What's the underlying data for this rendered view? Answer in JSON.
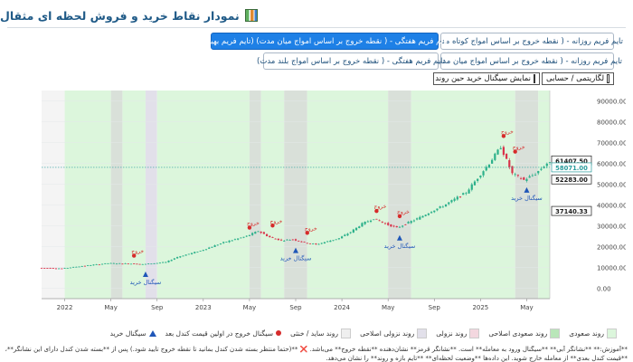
{
  "header": {
    "title": "نمودار نقاط خرید و فروش لحظه ای مثقال"
  },
  "buttons": {
    "row1": [
      "تایم فریم روزانه - ( نقطه خروج بر اساس امواج کوتاه مدت)",
      "تایم فریم هفتگی - ( نقطه خروج بر اساس امواج میان مدت) (تایم فریم بهینه)"
    ],
    "row2": [
      "تایم فریم روزانه - ( نقطه خروج بر اساس امواج میان مدت)",
      "تایم فریم هفتگی - ( نقطه خروج بر اساس امواج بلند مدت)"
    ],
    "active_index": "row1.1"
  },
  "checkboxes": {
    "log": "لگاریتمی / حسابی",
    "realtime": "نمایش سیگنال خرید حین روند"
  },
  "chart_data": {
    "type": "candlestick",
    "x_tick_labels": [
      "2022",
      "May",
      "Sep",
      "2023",
      "May",
      "Sep",
      "2024",
      "May",
      "Sep",
      "2025",
      "May"
    ],
    "y_ticks": [
      0,
      10000,
      20000,
      30000,
      40000,
      50000,
      60000,
      70000,
      80000,
      90000
    ],
    "y_tick_labels": [
      "0.00",
      "10000.00",
      "20000.00",
      "30000.00",
      "40000.00",
      "50000.00",
      "60000.00",
      "70000.00",
      "80000.00",
      "90000.00"
    ],
    "ylim": [
      -5000,
      95000
    ],
    "x_range": [
      "2021-11",
      "2025-07"
    ],
    "price_labels": [
      {
        "value": 61407.5,
        "text": "61407.50",
        "color": "#1c1c1c"
      },
      {
        "value": 58071,
        "text": "58071.00",
        "color": "#2a9d9d"
      },
      {
        "value": 52283,
        "text": "52283.00",
        "color": "#1c1c1c"
      },
      {
        "value": 37140.33,
        "text": "37140.33",
        "color": "#1c1c1c"
      }
    ],
    "price_path": [
      [
        "2021-11",
        9800
      ],
      [
        "2022-01",
        9500
      ],
      [
        "2022-03",
        10800
      ],
      [
        "2022-05",
        12000
      ],
      [
        "2022-07",
        11800
      ],
      [
        "2022-08",
        11500
      ],
      [
        "2022-10",
        12500
      ],
      [
        "2022-11",
        15000
      ],
      [
        "2023-01",
        18000
      ],
      [
        "2023-03",
        22000
      ],
      [
        "2023-05",
        25000
      ],
      [
        "2023-06",
        27500
      ],
      [
        "2023-07",
        24500
      ],
      [
        "2023-08",
        23000
      ],
      [
        "2023-09",
        23500
      ],
      [
        "2023-10",
        22000
      ],
      [
        "2023-11",
        21000
      ],
      [
        "2023-12",
        22500
      ],
      [
        "2024-01",
        24000
      ],
      [
        "2024-02",
        27000
      ],
      [
        "2024-03",
        31000
      ],
      [
        "2024-04",
        33500
      ],
      [
        "2024-05",
        31000
      ],
      [
        "2024-06",
        29000
      ],
      [
        "2024-07",
        31500
      ],
      [
        "2024-08",
        34000
      ],
      [
        "2024-09",
        37000
      ],
      [
        "2024-10",
        39500
      ],
      [
        "2024-12",
        46000
      ],
      [
        "2025-02",
        60000
      ],
      [
        "2025-03",
        68000
      ],
      [
        "2025-04",
        55000
      ],
      [
        "2025-05",
        52000
      ],
      [
        "2025-06",
        55000
      ],
      [
        "2025-07",
        60000
      ]
    ],
    "regimes": [
      {
        "start": "2021-11",
        "end": "2022-01",
        "kind": "neutral"
      },
      {
        "start": "2022-01",
        "end": "2022-05",
        "kind": "up"
      },
      {
        "start": "2022-05",
        "end": "2022-06",
        "kind": "correction"
      },
      {
        "start": "2022-06",
        "end": "2022-08",
        "kind": "up"
      },
      {
        "start": "2022-08",
        "end": "2022-09",
        "kind": "down"
      },
      {
        "start": "2022-09",
        "end": "2023-05",
        "kind": "up"
      },
      {
        "start": "2023-05",
        "end": "2023-06",
        "kind": "correction"
      },
      {
        "start": "2023-06",
        "end": "2023-08",
        "kind": "up"
      },
      {
        "start": "2023-08",
        "end": "2023-10",
        "kind": "correction"
      },
      {
        "start": "2023-10",
        "end": "2024-05",
        "kind": "up"
      },
      {
        "start": "2024-05",
        "end": "2024-07",
        "kind": "correction"
      },
      {
        "start": "2024-07",
        "end": "2025-04",
        "kind": "up"
      },
      {
        "start": "2025-04",
        "end": "2025-06",
        "kind": "correction"
      },
      {
        "start": "2025-06",
        "end": "2025-07",
        "kind": "up"
      }
    ],
    "buy_signals": [
      {
        "date": "2022-08",
        "price": 11500,
        "label": "سیگنال خرید"
      },
      {
        "date": "2023-09",
        "price": 23000,
        "label": "سیگنال خرید"
      },
      {
        "date": "2024-06",
        "price": 29000,
        "label": "سیگنال خرید"
      },
      {
        "date": "2025-05",
        "price": 52000,
        "label": "سیگنال خرید"
      }
    ],
    "sell_signals": [
      {
        "date": "2022-07",
        "price": 13000,
        "label": "خروج"
      },
      {
        "date": "2023-05",
        "price": 26500,
        "label": "خروج"
      },
      {
        "date": "2023-07",
        "price": 27500,
        "label": "خروج"
      },
      {
        "date": "2023-10",
        "price": 24000,
        "label": "خروج"
      },
      {
        "date": "2024-04",
        "price": 34500,
        "label": "خروج"
      },
      {
        "date": "2024-06",
        "price": 32000,
        "label": "خروج"
      },
      {
        "date": "2025-03",
        "price": 70500,
        "label": "خروج"
      },
      {
        "date": "2025-04",
        "price": 63000,
        "label": "خروج"
      }
    ],
    "colors": {
      "up": "#dcf6dc",
      "up_strong": "#b9e6b9",
      "correction": "#d9e0d9",
      "down": "#e2e0ea",
      "neutral": "#f4f4f4",
      "candle_up": "#2bb08a",
      "candle_down": "#d9334b",
      "buy": "#1f56b8",
      "sell": "#d62b2b",
      "current_line": "#2a9d9d"
    }
  },
  "legend": [
    {
      "label": "روند صعودی",
      "swatch": "#dcf6dc"
    },
    {
      "label": "روند صعودی اصلاحی",
      "swatch": "#b9e6b9"
    },
    {
      "label": "روند نزولی",
      "swatch": "#f3d7df"
    },
    {
      "label": "روند نزولی اصلاحی",
      "swatch": "#e2e0ea"
    },
    {
      "label": "روند ساید / خنثی",
      "swatch": "#efefef"
    },
    {
      "label": "سیگنال خروج در اولین قیمت کندل بعد",
      "swatch": "dot"
    },
    {
      "label": "سیگنال خرید",
      "swatch": "tri"
    }
  ],
  "notes": {
    "line1": "**آموزش:** **نشانگر آبی** **سیگنال ورود به معامله** است. **نشانگر قرمز** نشان‌دهنده **نقطه خروج** می‌باشد.  ❌ **(حتماً منتظر بسته شدن کندل بمانید تا نقطه خروج تأیید شود.) پس از **بسته شدن کندل دارای این نشانگر**، در",
    "line2": "**قیمت کندل بعدی** از معامله خارج شوید. این داده‌ها **وضعیت لحظه‌ای** **تایم بازه و روند** را نشان می‌دهد."
  }
}
